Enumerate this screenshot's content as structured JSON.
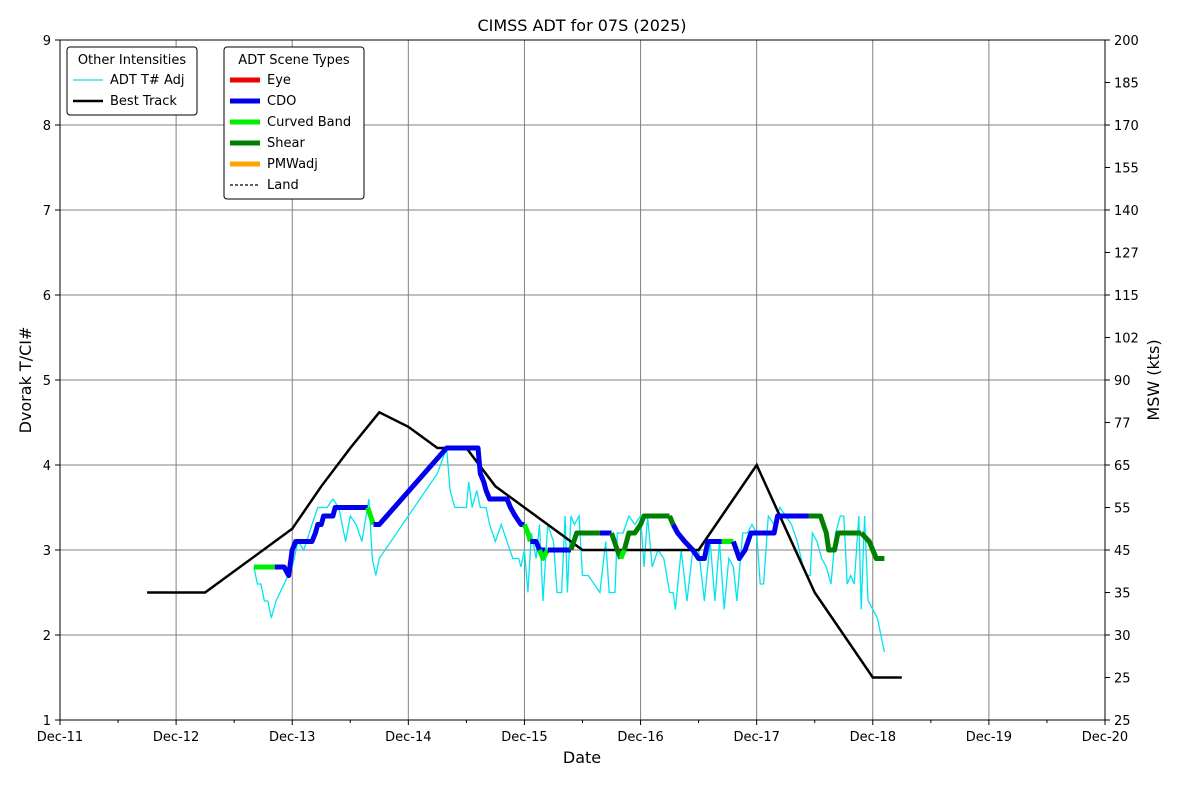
{
  "chart_data": {
    "type": "line",
    "title": "CIMSS ADT for 07S (2025)",
    "xlabel": "Date",
    "ylabel": "Dvorak T/CI#",
    "y2label": "MSW (kts)",
    "x_unit": "days since Dec-11 00Z",
    "xlim": [
      "Dec-11",
      "Dec-20"
    ],
    "ylim": [
      1,
      9
    ],
    "x_ticks": [
      "Dec-11",
      "Dec-12",
      "Dec-13",
      "Dec-14",
      "Dec-15",
      "Dec-16",
      "Dec-17",
      "Dec-18",
      "Dec-19",
      "Dec-20"
    ],
    "y_ticks": [
      "1",
      "2",
      "3",
      "4",
      "5",
      "6",
      "7",
      "8",
      "9"
    ],
    "y2_ticks": [
      {
        "t": 1,
        "label": "25"
      },
      {
        "t": 1.5,
        "label": "25"
      },
      {
        "t": 2,
        "label": "30"
      },
      {
        "t": 2.5,
        "label": "35"
      },
      {
        "t": 3,
        "label": "45"
      },
      {
        "t": 3.5,
        "label": "55"
      },
      {
        "t": 4,
        "label": "65"
      },
      {
        "t": 4.5,
        "label": "77"
      },
      {
        "t": 5,
        "label": "90"
      },
      {
        "t": 5.5,
        "label": "102"
      },
      {
        "t": 6,
        "label": "115"
      },
      {
        "t": 6.5,
        "label": "127"
      },
      {
        "t": 7,
        "label": "140"
      },
      {
        "t": 7.5,
        "label": "155"
      },
      {
        "t": 8,
        "label": "170"
      },
      {
        "t": 8.5,
        "label": "185"
      },
      {
        "t": 9,
        "label": "200"
      }
    ],
    "grid": true,
    "legend_other": {
      "title": "Other Intensities",
      "items": [
        {
          "label": "ADT T# Adj",
          "color": "#00e5ee",
          "style": "thin"
        },
        {
          "label": "Best Track",
          "color": "#000000",
          "style": "solid"
        }
      ]
    },
    "legend_scene": {
      "title": "ADT Scene Types",
      "items": [
        {
          "label": "Eye",
          "color": "#ee0000",
          "style": "thick"
        },
        {
          "label": "CDO",
          "color": "#0000ee",
          "style": "thick"
        },
        {
          "label": "Curved Band",
          "color": "#00ee00",
          "style": "thick"
        },
        {
          "label": "Shear",
          "color": "#008000",
          "style": "thick"
        },
        {
          "label": "PMWadj",
          "color": "#ffa500",
          "style": "thick"
        },
        {
          "label": "Land",
          "color": "#000000",
          "style": "dashed"
        }
      ]
    },
    "series": [
      {
        "name": "Best Track",
        "color": "#000000",
        "points": [
          [
            0.75,
            2.5
          ],
          [
            1.25,
            2.5
          ],
          [
            2.0,
            3.25
          ],
          [
            2.25,
            3.75
          ],
          [
            2.5,
            4.2
          ],
          [
            2.75,
            4.62
          ],
          [
            3.0,
            4.45
          ],
          [
            3.25,
            4.2
          ],
          [
            3.5,
            4.2
          ],
          [
            3.75,
            3.75
          ],
          [
            4.0,
            3.5
          ],
          [
            4.25,
            3.25
          ],
          [
            4.5,
            3.0
          ],
          [
            4.75,
            3.0
          ],
          [
            5.0,
            3.0
          ],
          [
            5.25,
            3.0
          ],
          [
            5.5,
            3.0
          ],
          [
            5.75,
            3.5
          ],
          [
            6.0,
            4.0
          ],
          [
            6.25,
            3.25
          ],
          [
            6.5,
            2.5
          ],
          [
            6.75,
            2.0
          ],
          [
            7.0,
            1.5
          ],
          [
            7.25,
            1.5
          ]
        ]
      },
      {
        "name": "ADT T# Adj",
        "color": "#00e5ee",
        "points": [
          [
            1.67,
            2.8
          ],
          [
            1.7,
            2.6
          ],
          [
            1.73,
            2.6
          ],
          [
            1.76,
            2.4
          ],
          [
            1.79,
            2.4
          ],
          [
            1.82,
            2.2
          ],
          [
            1.86,
            2.4
          ],
          [
            2.0,
            2.8
          ],
          [
            2.05,
            3.1
          ],
          [
            2.1,
            3.0
          ],
          [
            2.17,
            3.3
          ],
          [
            2.22,
            3.5
          ],
          [
            2.3,
            3.5
          ],
          [
            2.35,
            3.6
          ],
          [
            2.4,
            3.5
          ],
          [
            2.46,
            3.1
          ],
          [
            2.5,
            3.4
          ],
          [
            2.55,
            3.3
          ],
          [
            2.6,
            3.1
          ],
          [
            2.66,
            3.6
          ],
          [
            2.69,
            2.9
          ],
          [
            2.72,
            2.7
          ],
          [
            2.75,
            2.9
          ],
          [
            3.0,
            3.4
          ],
          [
            3.25,
            3.9
          ],
          [
            3.33,
            4.2
          ],
          [
            3.36,
            3.7
          ],
          [
            3.4,
            3.5
          ],
          [
            3.5,
            3.5
          ],
          [
            3.52,
            3.8
          ],
          [
            3.55,
            3.5
          ],
          [
            3.59,
            3.7
          ],
          [
            3.62,
            3.5
          ],
          [
            3.67,
            3.5
          ],
          [
            3.7,
            3.3
          ],
          [
            3.75,
            3.1
          ],
          [
            3.8,
            3.3
          ],
          [
            3.85,
            3.1
          ],
          [
            3.9,
            2.9
          ],
          [
            3.95,
            2.9
          ],
          [
            3.97,
            2.8
          ],
          [
            4.0,
            3.0
          ],
          [
            4.03,
            2.5
          ],
          [
            4.06,
            3.2
          ],
          [
            4.1,
            2.9
          ],
          [
            4.13,
            3.3
          ],
          [
            4.16,
            2.4
          ],
          [
            4.2,
            3.3
          ],
          [
            4.25,
            3.1
          ],
          [
            4.28,
            2.5
          ],
          [
            4.32,
            2.5
          ],
          [
            4.35,
            3.4
          ],
          [
            4.37,
            2.5
          ],
          [
            4.4,
            3.4
          ],
          [
            4.43,
            3.3
          ],
          [
            4.47,
            3.4
          ],
          [
            4.5,
            2.7
          ],
          [
            4.55,
            2.7
          ],
          [
            4.6,
            2.6
          ],
          [
            4.65,
            2.5
          ],
          [
            4.7,
            3.1
          ],
          [
            4.73,
            2.5
          ],
          [
            4.78,
            2.5
          ],
          [
            4.8,
            3.2
          ],
          [
            4.85,
            3.2
          ],
          [
            4.9,
            3.4
          ],
          [
            4.95,
            3.3
          ],
          [
            5.0,
            3.4
          ],
          [
            5.03,
            2.8
          ],
          [
            5.06,
            3.4
          ],
          [
            5.1,
            2.8
          ],
          [
            5.15,
            3.0
          ],
          [
            5.2,
            2.9
          ],
          [
            5.25,
            2.5
          ],
          [
            5.28,
            2.5
          ],
          [
            5.3,
            2.3
          ],
          [
            5.35,
            3.0
          ],
          [
            5.4,
            2.4
          ],
          [
            5.45,
            3.0
          ],
          [
            5.5,
            3.0
          ],
          [
            5.55,
            2.4
          ],
          [
            5.6,
            3.1
          ],
          [
            5.64,
            2.4
          ],
          [
            5.68,
            3.1
          ],
          [
            5.72,
            2.3
          ],
          [
            5.76,
            2.9
          ],
          [
            5.8,
            2.8
          ],
          [
            5.83,
            2.4
          ],
          [
            5.88,
            3.2
          ],
          [
            5.92,
            3.2
          ],
          [
            5.96,
            3.3
          ],
          [
            6.0,
            3.2
          ],
          [
            6.03,
            2.6
          ],
          [
            6.06,
            2.6
          ],
          [
            6.1,
            3.4
          ],
          [
            6.15,
            3.3
          ],
          [
            6.2,
            3.5
          ],
          [
            6.25,
            3.4
          ],
          [
            6.3,
            3.3
          ],
          [
            6.35,
            3.1
          ],
          [
            6.4,
            2.8
          ],
          [
            6.43,
            2.7
          ],
          [
            6.46,
            2.7
          ],
          [
            6.48,
            3.2
          ],
          [
            6.52,
            3.1
          ],
          [
            6.56,
            2.9
          ],
          [
            6.6,
            2.8
          ],
          [
            6.64,
            2.6
          ],
          [
            6.68,
            3.2
          ],
          [
            6.72,
            3.4
          ],
          [
            6.75,
            3.4
          ],
          [
            6.78,
            2.6
          ],
          [
            6.81,
            2.7
          ],
          [
            6.84,
            2.6
          ],
          [
            6.88,
            3.4
          ],
          [
            6.9,
            2.3
          ],
          [
            6.93,
            3.4
          ],
          [
            6.96,
            2.4
          ],
          [
            7.0,
            2.3
          ],
          [
            7.04,
            2.2
          ],
          [
            7.07,
            2.0
          ],
          [
            7.1,
            1.8
          ]
        ]
      }
    ],
    "scene_segments": [
      {
        "scene": "Curved Band",
        "color": "#00ee00",
        "points": [
          [
            1.67,
            2.8
          ],
          [
            1.85,
            2.8
          ]
        ]
      },
      {
        "scene": "CDO",
        "color": "#0000ee",
        "points": [
          [
            1.85,
            2.8
          ],
          [
            1.93,
            2.8
          ],
          [
            1.97,
            2.7
          ],
          [
            2.0,
            3.0
          ],
          [
            2.03,
            3.1
          ],
          [
            2.17,
            3.1
          ],
          [
            2.2,
            3.2
          ],
          [
            2.22,
            3.3
          ],
          [
            2.25,
            3.3
          ],
          [
            2.27,
            3.4
          ],
          [
            2.35,
            3.4
          ],
          [
            2.37,
            3.5
          ],
          [
            2.65,
            3.5
          ]
        ]
      },
      {
        "scene": "Curved Band",
        "color": "#00ee00",
        "points": [
          [
            2.65,
            3.5
          ],
          [
            2.7,
            3.3
          ]
        ]
      },
      {
        "scene": "CDO",
        "color": "#0000ee",
        "points": [
          [
            2.7,
            3.3
          ],
          [
            2.75,
            3.3
          ],
          [
            3.33,
            4.2
          ],
          [
            3.6,
            4.2
          ],
          [
            3.62,
            3.9
          ],
          [
            3.65,
            3.8
          ],
          [
            3.67,
            3.7
          ],
          [
            3.7,
            3.6
          ],
          [
            3.85,
            3.6
          ],
          [
            3.88,
            3.5
          ],
          [
            3.92,
            3.4
          ],
          [
            3.97,
            3.3
          ],
          [
            4.0,
            3.3
          ]
        ]
      },
      {
        "scene": "Curved Band",
        "color": "#00ee00",
        "points": [
          [
            4.0,
            3.3
          ],
          [
            4.03,
            3.2
          ],
          [
            4.05,
            3.1
          ]
        ]
      },
      {
        "scene": "CDO",
        "color": "#0000ee",
        "points": [
          [
            4.05,
            3.1
          ],
          [
            4.1,
            3.1
          ],
          [
            4.13,
            3.0
          ],
          [
            4.18,
            3.0
          ]
        ]
      },
      {
        "scene": "Curved Band",
        "color": "#00ee00",
        "points": [
          [
            4.13,
            3.0
          ],
          [
            4.16,
            2.9
          ],
          [
            4.2,
            3.0
          ]
        ]
      },
      {
        "scene": "CDO",
        "color": "#0000ee",
        "points": [
          [
            4.2,
            3.0
          ],
          [
            4.4,
            3.0
          ]
        ]
      },
      {
        "scene": "Shear",
        "color": "#008000",
        "points": [
          [
            4.4,
            3.0
          ],
          [
            4.45,
            3.2
          ],
          [
            4.65,
            3.2
          ]
        ]
      },
      {
        "scene": "CDO",
        "color": "#0000ee",
        "points": [
          [
            4.65,
            3.2
          ],
          [
            4.75,
            3.2
          ]
        ]
      },
      {
        "scene": "Shear",
        "color": "#008000",
        "points": [
          [
            4.75,
            3.2
          ],
          [
            4.8,
            3.0
          ],
          [
            4.83,
            2.9
          ]
        ]
      },
      {
        "scene": "Curved Band",
        "color": "#00ee00",
        "points": [
          [
            4.83,
            2.9
          ],
          [
            4.86,
            3.0
          ]
        ]
      },
      {
        "scene": "Shear",
        "color": "#008000",
        "points": [
          [
            4.86,
            3.0
          ],
          [
            4.9,
            3.2
          ],
          [
            4.95,
            3.2
          ],
          [
            5.0,
            3.3
          ],
          [
            5.03,
            3.4
          ],
          [
            5.25,
            3.4
          ]
        ]
      },
      {
        "scene": "Shear",
        "color": "#008000",
        "points": [
          [
            5.25,
            3.4
          ],
          [
            5.28,
            3.3
          ]
        ]
      },
      {
        "scene": "CDO",
        "color": "#0000ee",
        "points": [
          [
            5.28,
            3.3
          ],
          [
            5.32,
            3.2
          ],
          [
            5.38,
            3.1
          ],
          [
            5.45,
            3.0
          ],
          [
            5.5,
            2.9
          ],
          [
            5.55,
            2.9
          ],
          [
            5.58,
            3.1
          ],
          [
            5.7,
            3.1
          ]
        ]
      },
      {
        "scene": "Curved Band",
        "color": "#00ee00",
        "points": [
          [
            5.7,
            3.1
          ],
          [
            5.8,
            3.1
          ]
        ]
      },
      {
        "scene": "CDO",
        "color": "#0000ee",
        "points": [
          [
            5.8,
            3.1
          ],
          [
            5.85,
            2.9
          ],
          [
            5.9,
            3.0
          ],
          [
            5.95,
            3.2
          ],
          [
            6.15,
            3.2
          ],
          [
            6.18,
            3.4
          ],
          [
            6.45,
            3.4
          ]
        ]
      },
      {
        "scene": "Shear",
        "color": "#008000",
        "points": [
          [
            6.45,
            3.4
          ],
          [
            6.55,
            3.4
          ],
          [
            6.6,
            3.2
          ],
          [
            6.62,
            3.0
          ],
          [
            6.67,
            3.0
          ],
          [
            6.7,
            3.2
          ],
          [
            6.85,
            3.2
          ],
          [
            6.9,
            3.2
          ]
        ]
      },
      {
        "scene": "Shear",
        "color": "#008000",
        "points": [
          [
            6.9,
            3.2
          ],
          [
            6.97,
            3.1
          ],
          [
            7.0,
            3.0
          ],
          [
            7.03,
            2.9
          ],
          [
            7.1,
            2.9
          ]
        ]
      }
    ]
  }
}
